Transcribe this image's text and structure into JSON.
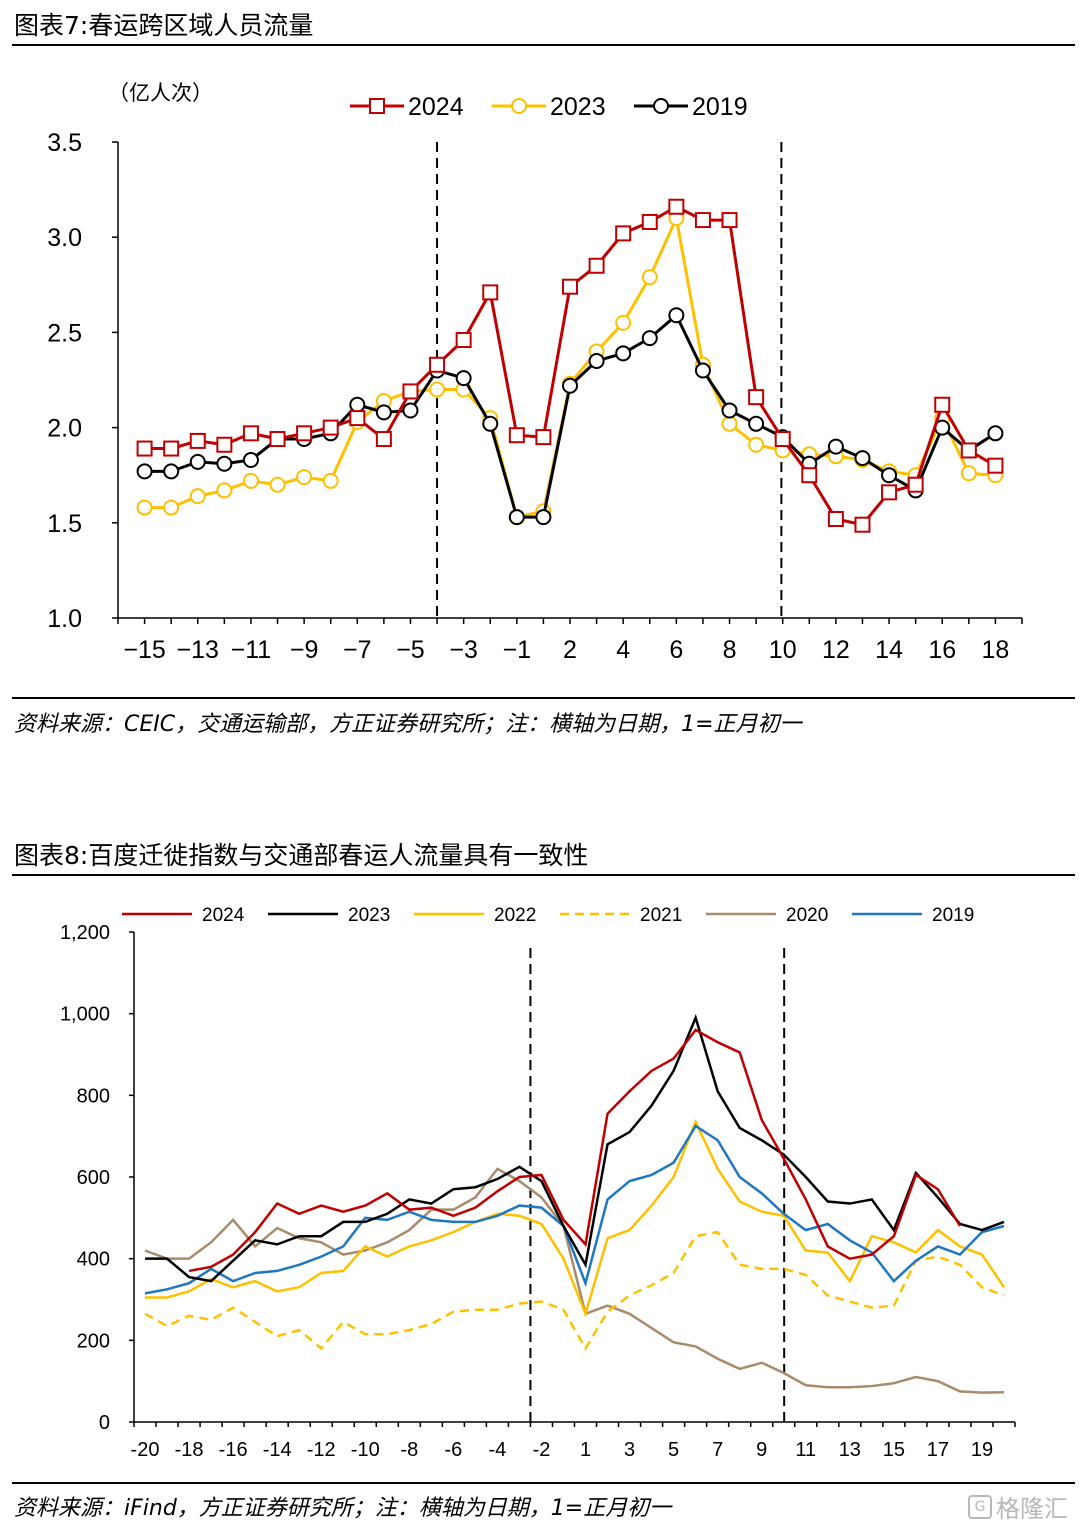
{
  "figure7": {
    "title": "图表7:春运跨区域人员流量",
    "unit": "（亿人次）",
    "source": "资料来源：CEIC，交通运输部，方正证券研究所；注：横轴为日期，1=正月初一"
  },
  "figure8": {
    "title": "图表8:百度迁徙指数与交通部春运人流量具有一致性",
    "source": "资料来源：iFind，方正证券研究所；注：横轴为日期，1=正月初一"
  },
  "watermark": {
    "text": "格隆汇"
  },
  "chart_data": [
    {
      "type": "line",
      "ylabel": "（亿人次）",
      "ylim": [
        1.0,
        3.5
      ],
      "yticks": [
        "1.0",
        "1.5",
        "2.0",
        "2.5",
        "3.0",
        "3.5"
      ],
      "xticks": [
        "−15",
        "−13",
        "−11",
        "−9",
        "−7",
        "−5",
        "−3",
        "−1",
        "2",
        "4",
        "6",
        "8",
        "10",
        "12",
        "14",
        "16",
        "18"
      ],
      "x": [
        -15,
        -14,
        -13,
        -12,
        -11,
        -10,
        -9,
        -8,
        -7,
        -6,
        -5,
        -4,
        -3,
        -2,
        -1,
        1,
        2,
        3,
        4,
        5,
        6,
        7,
        8,
        9,
        10,
        11,
        12,
        13,
        14,
        15,
        16,
        17,
        18
      ],
      "vlines": [
        -4,
        10
      ],
      "legend": "top-center",
      "series": [
        {
          "name": "2024",
          "color": "#c00000",
          "marker": "square",
          "values": [
            1.89,
            1.89,
            1.93,
            1.91,
            1.97,
            1.94,
            1.97,
            2.0,
            2.05,
            1.94,
            2.19,
            2.33,
            2.46,
            2.71,
            1.96,
            1.95,
            2.74,
            2.85,
            3.02,
            3.08,
            3.16,
            3.09,
            3.09,
            2.16,
            1.94,
            1.75,
            1.52,
            1.49,
            1.66,
            1.7,
            2.12,
            1.88,
            1.8
          ]
        },
        {
          "name": "2023",
          "color": "#ffc000",
          "marker": "circle",
          "values": [
            1.58,
            1.58,
            1.64,
            1.67,
            1.72,
            1.7,
            1.74,
            1.72,
            2.03,
            2.14,
            2.19,
            2.2,
            2.2,
            2.05,
            1.53,
            1.56,
            2.23,
            2.4,
            2.55,
            2.79,
            3.1,
            2.33,
            2.02,
            1.91,
            1.88,
            1.86,
            1.85,
            1.83,
            1.77,
            1.75,
            2.05,
            1.76,
            1.75
          ]
        },
        {
          "name": "2019",
          "color": "#000000",
          "marker": "circle",
          "values": [
            1.77,
            1.77,
            1.82,
            1.81,
            1.83,
            1.94,
            1.94,
            1.97,
            2.12,
            2.08,
            2.09,
            2.3,
            2.26,
            2.02,
            1.53,
            1.53,
            2.22,
            2.35,
            2.39,
            2.47,
            2.59,
            2.3,
            2.09,
            2.02,
            1.95,
            1.81,
            1.9,
            1.84,
            1.75,
            1.67,
            2.0,
            1.88,
            1.97
          ]
        }
      ]
    },
    {
      "type": "line",
      "ylim": [
        0,
        1200
      ],
      "yticks": [
        "0",
        "200",
        "400",
        "600",
        "800",
        "1,000",
        "1,200"
      ],
      "xticks": [
        "-20",
        "-18",
        "-16",
        "-14",
        "-12",
        "-10",
        "-8",
        "-6",
        "-4",
        "-2",
        "1",
        "3",
        "5",
        "7",
        "9",
        "11",
        "13",
        "15",
        "17",
        "19"
      ],
      "x": [
        -20,
        -19,
        -18,
        -17,
        -16,
        -15,
        -14,
        -13,
        -12,
        -11,
        -10,
        -9,
        -8,
        -7,
        -6,
        -5,
        -4,
        -3,
        -2,
        -1,
        1,
        2,
        3,
        4,
        5,
        6,
        7,
        8,
        9,
        10,
        11,
        12,
        13,
        14,
        15,
        16,
        17,
        18,
        19,
        20
      ],
      "vlines": [
        -2.5,
        9.5
      ],
      "legend": "top",
      "series": [
        {
          "name": "2024",
          "color": "#c00000",
          "dash": false,
          "values": [
            null,
            null,
            370,
            380,
            410,
            465,
            535,
            510,
            530,
            515,
            530,
            560,
            520,
            525,
            505,
            525,
            565,
            600,
            605,
            495,
            435,
            755,
            810,
            860,
            890,
            960,
            930,
            905,
            740,
            645,
            545,
            430,
            400,
            410,
            455,
            605,
            570,
            480,
            null,
            null
          ]
        },
        {
          "name": "2023",
          "color": "#000000",
          "dash": false,
          "values": [
            400,
            400,
            355,
            345,
            395,
            445,
            435,
            455,
            455,
            490,
            490,
            510,
            545,
            535,
            570,
            575,
            595,
            625,
            590,
            480,
            385,
            680,
            710,
            775,
            860,
            990,
            810,
            720,
            690,
            655,
            600,
            540,
            535,
            545,
            470,
            610,
            550,
            485,
            470,
            490
          ]
        },
        {
          "name": "2022",
          "color": "#ffc000",
          "dash": false,
          "values": [
            305,
            305,
            320,
            350,
            330,
            345,
            320,
            330,
            365,
            370,
            430,
            405,
            430,
            445,
            465,
            490,
            510,
            505,
            485,
            400,
            265,
            450,
            470,
            530,
            600,
            735,
            620,
            540,
            515,
            505,
            420,
            415,
            345,
            455,
            440,
            415,
            470,
            430,
            410,
            330
          ]
        },
        {
          "name": "2021",
          "color": "#ffc000",
          "dash": true,
          "values": [
            265,
            235,
            260,
            250,
            280,
            245,
            210,
            225,
            180,
            245,
            215,
            215,
            225,
            240,
            270,
            275,
            275,
            290,
            295,
            275,
            180,
            270,
            310,
            335,
            365,
            455,
            465,
            385,
            375,
            375,
            360,
            310,
            295,
            280,
            285,
            395,
            405,
            385,
            330,
            310
          ]
        },
        {
          "name": "2020",
          "color": "#a88b6a",
          "dash": false,
          "values": [
            420,
            400,
            400,
            440,
            495,
            430,
            475,
            450,
            440,
            410,
            420,
            440,
            470,
            520,
            520,
            550,
            620,
            590,
            550,
            480,
            265,
            285,
            265,
            230,
            195,
            185,
            155,
            130,
            145,
            120,
            90,
            85,
            85,
            88,
            95,
            110,
            100,
            75,
            72,
            73
          ]
        },
        {
          "name": "2019",
          "color": "#1f77c0",
          "dash": false,
          "values": [
            315,
            325,
            340,
            375,
            345,
            365,
            370,
            385,
            405,
            430,
            500,
            495,
            515,
            495,
            490,
            490,
            505,
            530,
            525,
            480,
            340,
            545,
            590,
            605,
            635,
            725,
            690,
            600,
            560,
            510,
            470,
            485,
            445,
            415,
            345,
            395,
            430,
            410,
            465,
            480
          ]
        }
      ]
    }
  ]
}
